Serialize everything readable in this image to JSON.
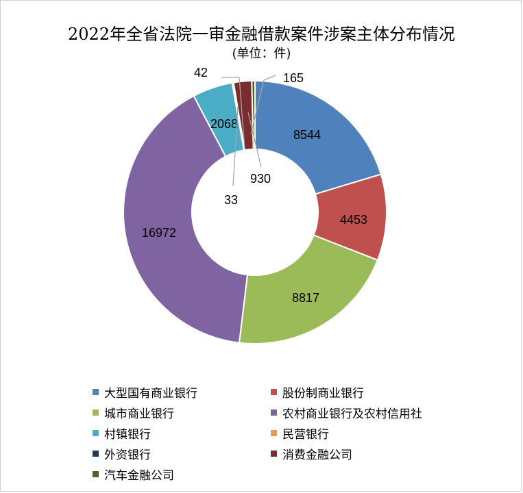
{
  "chart_data": {
    "type": "pie",
    "title": "2022年全省法院一审金融借款案件涉案主体分布情况",
    "subtitle": "(单位：件)",
    "categories": [
      "大型国有商业银行",
      "股份制商业银行",
      "城市商业银行",
      "农村商业银行及农村信用社",
      "村镇银行",
      "民营银行",
      "外资银行",
      "消费金融公司",
      "汽车金融公司"
    ],
    "values": [
      8544,
      4453,
      8817,
      16972,
      2068,
      42,
      33,
      930,
      165
    ],
    "labels": [
      "8544",
      "4453",
      "8817",
      "16972",
      "2068",
      "42",
      "33",
      "930",
      "165"
    ],
    "colors": [
      "#4F81BD",
      "#C0504D",
      "#9BBB59",
      "#8064A2",
      "#4BACC6",
      "#F79646",
      "#1F3864",
      "#7B2C2C",
      "#4F6228"
    ],
    "legend_position": "bottom"
  }
}
